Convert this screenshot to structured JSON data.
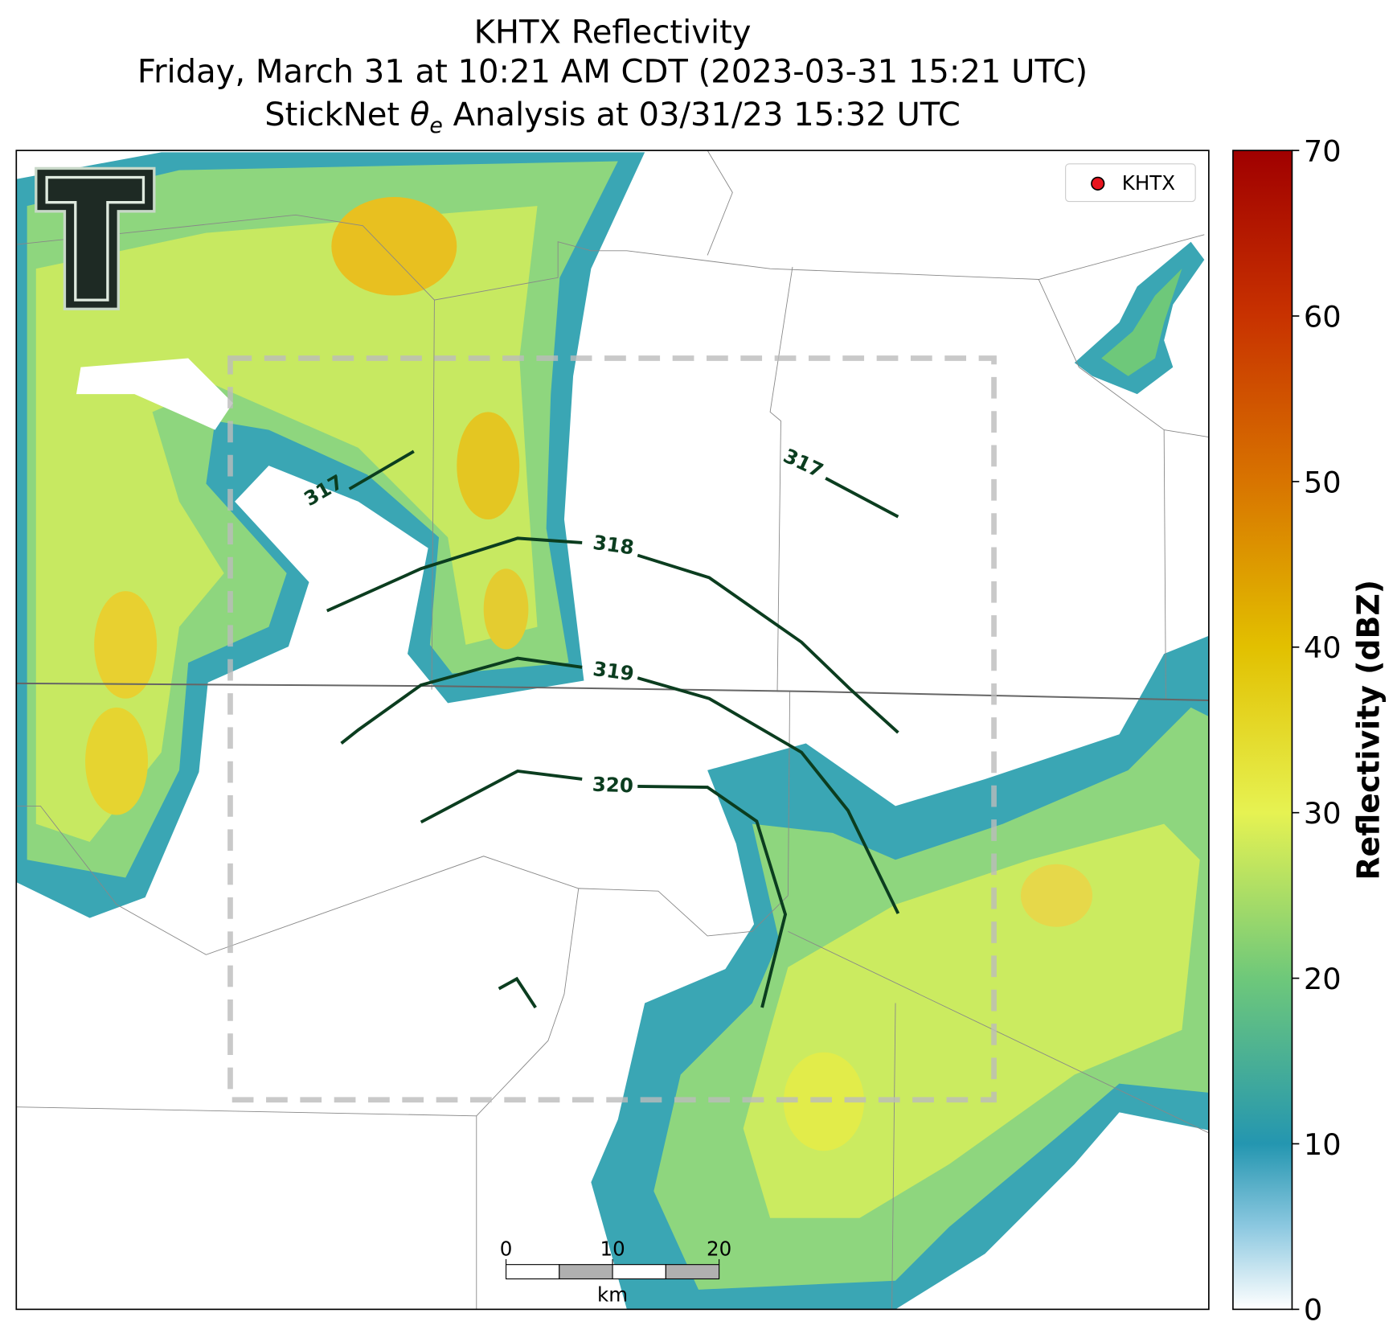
{
  "title": {
    "line1": "KHTX Reflectivity",
    "line2": "Friday, March 31 at 10:21 AM CDT (2023-03-31 15:21 UTC)",
    "line3": {
      "before": "StickNet",
      "symbol": "θ",
      "subscript": "e",
      "after": "Analysis at 03/31/23 15:32 UTC"
    }
  },
  "legend": {
    "label": "KHTX",
    "color": "#e8141e"
  },
  "contours": [
    {
      "label": 317
    },
    {
      "label": 317
    },
    {
      "label": 318
    },
    {
      "label": 319
    },
    {
      "label": 320
    }
  ],
  "scale_bar": {
    "ticks": [
      0,
      10,
      20
    ],
    "unit": "km"
  },
  "colorbar": {
    "label": "Reflectivity (dBZ)",
    "lim": [
      0,
      70
    ],
    "ticks": [
      0,
      10,
      20,
      30,
      40,
      50,
      60,
      70
    ],
    "colormap": [
      {
        "value": 0,
        "color": "#ffffff"
      },
      {
        "value": 5,
        "color": "#8cc8e0"
      },
      {
        "value": 10,
        "color": "#2496b0"
      },
      {
        "value": 20,
        "color": "#6ec87a"
      },
      {
        "value": 30,
        "color": "#e6f252"
      },
      {
        "value": 40,
        "color": "#e2c000"
      },
      {
        "value": 50,
        "color": "#d87400"
      },
      {
        "value": 60,
        "color": "#c83200"
      },
      {
        "value": 70,
        "color": "#a00000"
      }
    ]
  }
}
